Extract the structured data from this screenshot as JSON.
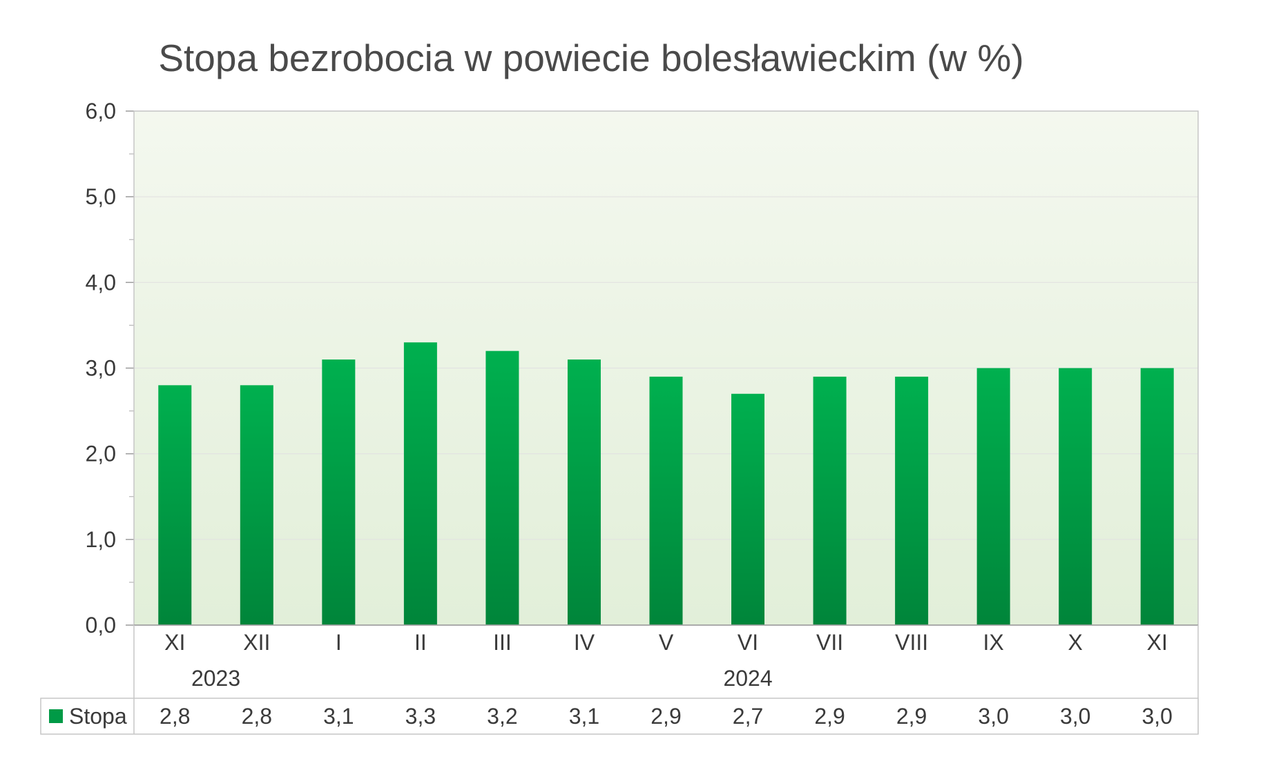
{
  "chart_data": {
    "type": "bar",
    "title": "Stopa bezrobocia w powiecie bolesławieckim (w %)",
    "categories": [
      "XI",
      "XII",
      "I",
      "II",
      "III",
      "IV",
      "V",
      "VI",
      "VII",
      "VIII",
      "IX",
      "X",
      "XI"
    ],
    "year_groups": [
      {
        "label": "2023",
        "from": 0,
        "to": 1
      },
      {
        "label": "2024",
        "from": 2,
        "to": 12
      }
    ],
    "series": [
      {
        "name": "Stopa",
        "values": [
          2.8,
          2.8,
          3.1,
          3.3,
          3.2,
          3.1,
          2.9,
          2.7,
          2.9,
          2.9,
          3.0,
          3.0,
          3.0
        ]
      }
    ],
    "value_labels": [
      "2,8",
      "2,8",
      "3,1",
      "3,3",
      "3,2",
      "3,1",
      "2,9",
      "2,7",
      "2,9",
      "2,9",
      "3,0",
      "3,0",
      "3,0"
    ],
    "y_ticks": [
      "0,0",
      "1,0",
      "2,0",
      "3,0",
      "4,0",
      "5,0",
      "6,0"
    ],
    "ylim": [
      0,
      6
    ],
    "grid": true,
    "legend": "data-table-left",
    "colors": {
      "bar_top": "#00b04f",
      "bar_bottom": "#00853a",
      "legend_key": "#009a46",
      "plot_top": "#f4f8ef",
      "plot_bottom": "#e2efd9"
    }
  }
}
